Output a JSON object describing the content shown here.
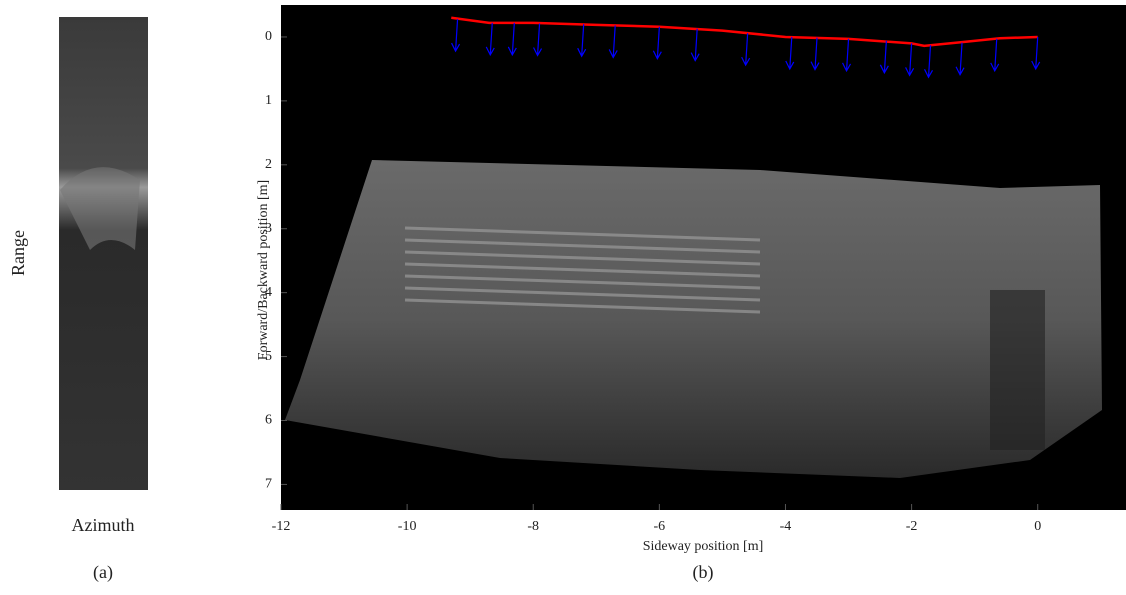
{
  "chart_data": [
    {
      "type": "image",
      "xlabel": "Azimuth",
      "ylabel": "Range",
      "caption": "(a)"
    },
    {
      "type": "line",
      "xlabel": "Sideway position [m]",
      "ylabel": "Forward/Backward position [m]",
      "caption": "(b)",
      "xlim": [
        -12,
        1.4
      ],
      "ylim": [
        -0.5,
        7.4
      ],
      "y_reversed": true,
      "xticks": [
        -12,
        -10,
        -8,
        -6,
        -4,
        -2,
        0
      ],
      "yticks": [
        0,
        1,
        2,
        3,
        4,
        5,
        6,
        7
      ],
      "series": [
        {
          "color": "#ff0000",
          "x": [
            -9.3,
            -8.7,
            -8.3,
            -8,
            -7,
            -6,
            -5,
            -4,
            -3,
            -2,
            -1.8,
            -1.2,
            -0.6,
            0
          ],
          "values": [
            -0.3,
            -0.22,
            -0.22,
            -0.22,
            -0.19,
            -0.16,
            -0.1,
            0,
            0.03,
            0.1,
            0.14,
            0.08,
            0.02,
            0
          ]
        }
      ],
      "arrows": {
        "color": "#0000ff",
        "x": [
          -9.2,
          -8.65,
          -8.3,
          -7.9,
          -7.2,
          -6.7,
          -6,
          -5.4,
          -4.6,
          -3.9,
          -3.5,
          -3,
          -2.4,
          -2,
          -1.7,
          -1.2,
          -0.65,
          0
        ],
        "values": [
          -0.28,
          -0.22,
          -0.22,
          -0.21,
          -0.2,
          -0.18,
          -0.16,
          -0.13,
          -0.06,
          0,
          0.01,
          0.03,
          0.06,
          0.1,
          0.13,
          0.09,
          0.03,
          0
        ]
      }
    }
  ]
}
